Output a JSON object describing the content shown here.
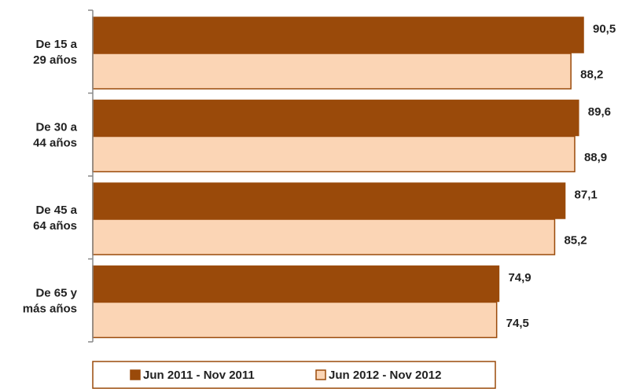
{
  "chart_data": {
    "type": "bar",
    "orientation": "horizontal",
    "categories": [
      [
        "De 15 a",
        "29 años"
      ],
      [
        "De 30 a",
        "44 años"
      ],
      [
        "De 45 a",
        "64 años"
      ],
      [
        "De 65 y",
        "más años"
      ]
    ],
    "series": [
      {
        "name": "Jun 2011 - Nov 2011",
        "values": [
          90.5,
          89.6,
          87.1,
          74.9
        ],
        "labels": [
          "90,5",
          "89,6",
          "87,1",
          "74,9"
        ],
        "color": "#9a4a0a",
        "border": "#9a4a0a"
      },
      {
        "name": "Jun 2012 - Nov 2012",
        "values": [
          88.2,
          88.9,
          85.2,
          74.5
        ],
        "labels": [
          "88,2",
          "88,9",
          "85,2",
          "74,5"
        ],
        "color": "#fbd5b5",
        "border": "#9a4a0a"
      }
    ],
    "xlim": [
      0,
      100
    ],
    "grid": false,
    "legend": "bottom",
    "frame_color": "#9a4a0a",
    "axis_color": "#888888"
  }
}
